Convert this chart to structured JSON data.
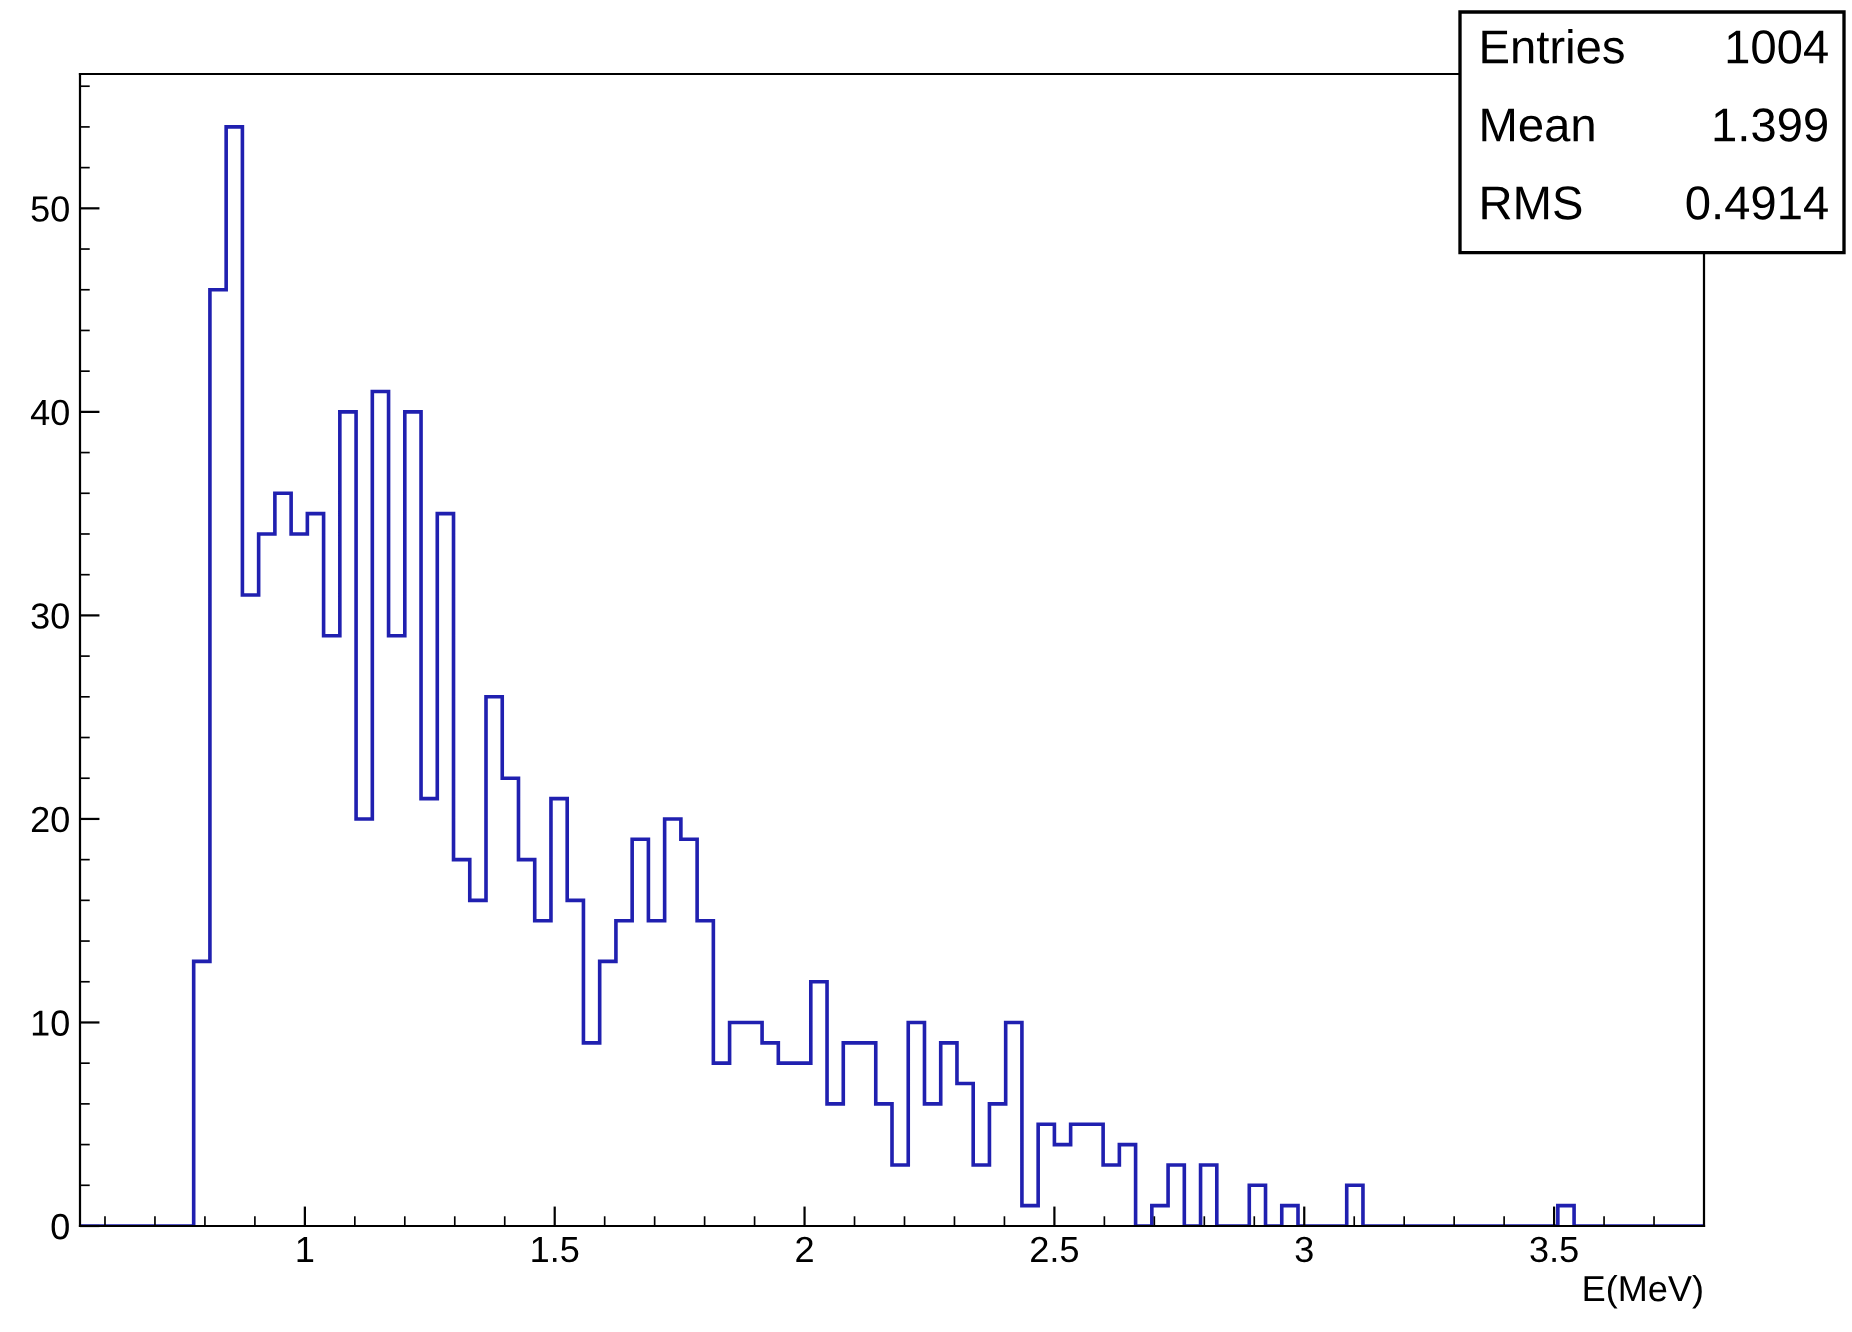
{
  "chart_data": {
    "type": "histogram",
    "xlabel": "E(MeV)",
    "annotations": [
      "Entries",
      "1004",
      "Mean",
      "1.399",
      "RMS",
      "0.4914"
    ],
    "color": "#2020b0",
    "bins": [
      0.55,
      0.5825,
      0.615,
      0.6475,
      0.68,
      0.7125,
      0.745,
      0.7775,
      0.81,
      0.8425,
      0.875,
      0.9075,
      0.94,
      0.9725,
      1.005,
      1.0375,
      1.07,
      1.1025,
      1.135,
      1.1675,
      1.2,
      1.2325,
      1.265,
      1.2975,
      1.33,
      1.3625,
      1.395,
      1.4275,
      1.46,
      1.4925,
      1.525,
      1.5575,
      1.59,
      1.6225,
      1.655,
      1.6875,
      1.72,
      1.7525,
      1.785,
      1.8175,
      1.85,
      1.8825,
      1.915,
      1.9475,
      1.98,
      2.0125,
      2.045,
      2.0775,
      2.11,
      2.1425,
      2.175,
      2.2075,
      2.24,
      2.2725,
      2.305,
      2.3375,
      2.37,
      2.4025,
      2.435,
      2.4675,
      2.5,
      2.5325,
      2.565,
      2.5975,
      2.63,
      2.6625,
      2.695,
      2.7275,
      2.76,
      2.7925,
      2.825,
      2.8575,
      2.89,
      2.9225,
      2.955,
      2.9875,
      3.02,
      3.0525,
      3.085,
      3.1175,
      3.15,
      3.1825,
      3.215,
      3.2475,
      3.28,
      3.3125,
      3.345,
      3.3775,
      3.41,
      3.4425,
      3.475,
      3.5075,
      3.54,
      3.5725,
      3.605,
      3.6375,
      3.67,
      3.7025,
      3.735,
      3.7675,
      3.8
    ],
    "values": [
      0,
      0,
      0,
      0,
      0,
      0,
      0,
      13,
      46,
      54,
      31,
      34,
      36,
      34,
      35,
      29,
      40,
      20,
      41,
      29,
      40,
      21,
      35,
      18,
      16,
      26,
      22,
      18,
      15,
      21,
      16,
      9,
      13,
      15,
      19,
      15,
      20,
      19,
      15,
      8,
      10,
      10,
      9,
      8,
      8,
      12,
      6,
      9,
      9,
      6,
      3,
      10,
      6,
      9,
      7,
      3,
      6,
      10,
      1,
      5,
      4,
      5,
      5,
      3,
      4,
      0,
      1,
      3,
      0,
      3,
      0,
      0,
      2,
      0,
      1,
      0,
      0,
      0,
      2,
      0,
      0,
      0,
      0,
      0,
      0,
      0,
      0,
      0,
      0,
      0,
      0,
      1,
      0,
      0,
      0,
      0,
      0,
      0,
      0,
      0
    ],
    "xlim": [
      0.55,
      3.8
    ],
    "ylim": [
      0,
      56.6
    ],
    "xticks": [
      1,
      1.5,
      2,
      2.5,
      3,
      3.5
    ],
    "yticks": [
      0,
      10,
      20,
      30,
      40,
      50
    ],
    "grid": false,
    "legend": false
  }
}
